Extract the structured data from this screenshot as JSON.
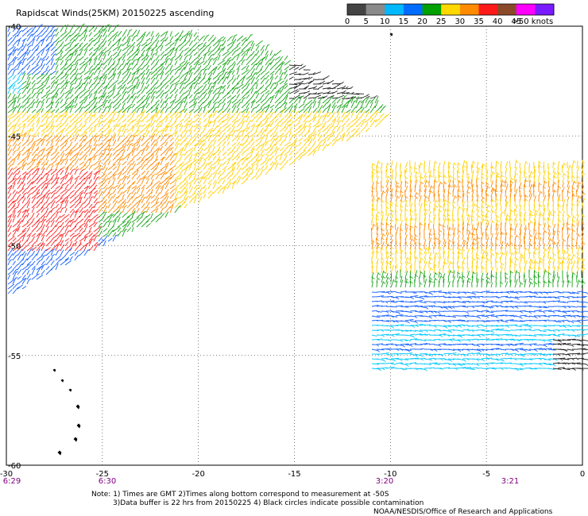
{
  "title": "Rapidscat Winds(25KM) 20150225 ascending",
  "legend": {
    "labels": [
      "0",
      "5",
      "10",
      "15",
      "20",
      "25",
      "30",
      "35",
      "40",
      "45",
      ">50 knots"
    ],
    "colors": [
      "#444444",
      "#8a8a8a",
      "#00b8ff",
      "#006cff",
      "#00a000",
      "#ffd800",
      "#ff8c00",
      "#ff1a1a",
      "#8a4a2a",
      "#ff00ff",
      "#7a1aff"
    ]
  },
  "axes": {
    "x_ticks": [
      "-30",
      "-25",
      "-20",
      "-15",
      "-10",
      "-5",
      "0"
    ],
    "y_ticks": [
      "-40",
      "-45",
      "-50",
      "-55",
      "-60"
    ]
  },
  "time_labels": [
    "6:29",
    "6:30",
    "3:20",
    "3:21"
  ],
  "notes": {
    "line1": "Note: 1) Times are GMT 2)Times along bottom correspond to measurement at -50S",
    "line2": "3)Data buffer is 22 hrs from 20150225 4) Black circles indicate possible contamination",
    "line3": "NOAA/NESDIS/Office of Research and Applications"
  },
  "map_colors": {
    "grid": "#555555",
    "axis": "#000000",
    "time_label": "#800080",
    "land": "#000000"
  }
}
